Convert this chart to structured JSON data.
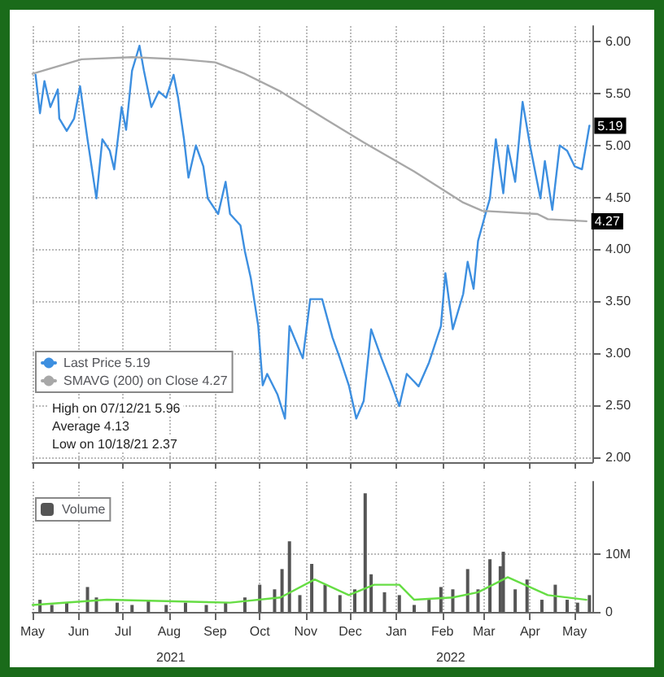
{
  "chart_data": [
    {
      "type": "line",
      "legend": "bottom left",
      "grid": true,
      "marker": "none",
      "line_style": "solid",
      "tick_labels": "y",
      "xlim": [
        "2021-05-01",
        "2022-05-13"
      ],
      "xticks": [
        {
          "value": "2021-05-01",
          "label": null
        },
        {
          "value": "2021-06-01",
          "label": null
        },
        {
          "value": "2021-07-01",
          "label": null
        },
        {
          "value": "2021-08-01",
          "label": null
        },
        {
          "value": "2021-09-01",
          "label": null
        },
        {
          "value": "2021-10-01",
          "label": null
        },
        {
          "value": "2021-11-01",
          "label": null
        },
        {
          "value": "2021-12-01",
          "label": null
        },
        {
          "value": "2022-01-01",
          "label": null
        },
        {
          "value": "2022-02-01",
          "label": null
        },
        {
          "value": "2022-03-01",
          "label": null
        },
        {
          "value": "2022-04-01",
          "label": null
        },
        {
          "value": "2022-05-01",
          "label": null
        }
      ],
      "ylim": [
        1.95,
        6.15
      ],
      "yticks": [
        {
          "value": 2,
          "label": "2.00"
        },
        {
          "value": 2.5,
          "label": "2.50"
        },
        {
          "value": 3,
          "label": "3.00"
        },
        {
          "value": 3.5,
          "label": "3.50"
        },
        {
          "value": 4,
          "label": "4.00"
        },
        {
          "value": 4.5,
          "label": "4.50"
        },
        {
          "value": 5,
          "label": "5.00"
        },
        {
          "value": 5.5,
          "label": "5.50"
        },
        {
          "value": 6,
          "label": "6.00"
        }
      ],
      "annotations": [
        "High on 07/12/21 5.96",
        "Average 4.13",
        "Low on 10/18/21 2.37"
      ],
      "series": [
        {
          "name": "Last Price 5.19",
          "color": "#3d8fe0",
          "x": [
            "2021-05-03",
            "2021-05-06",
            "2021-05-09",
            "2021-05-13",
            "2021-05-18",
            "2021-05-19",
            "2021-05-24",
            "2021-05-29",
            "2021-06-02",
            "2021-06-07",
            "2021-06-13",
            "2021-06-17",
            "2021-06-22",
            "2021-06-25",
            "2021-06-30",
            "2021-07-03",
            "2021-07-07",
            "2021-07-12",
            "2021-07-15",
            "2021-07-20",
            "2021-07-25",
            "2021-07-30",
            "2021-08-04",
            "2021-08-07",
            "2021-08-11",
            "2021-08-14",
            "2021-08-19",
            "2021-08-24",
            "2021-08-27",
            "2021-09-03",
            "2021-09-08",
            "2021-09-11",
            "2021-09-18",
            "2021-09-21",
            "2021-09-25",
            "2021-09-30",
            "2021-10-03",
            "2021-10-06",
            "2021-10-13",
            "2021-10-18",
            "2021-10-21",
            "2021-10-30",
            "2021-11-04",
            "2021-11-12",
            "2021-11-19",
            "2021-11-24",
            "2021-11-30",
            "2021-12-05",
            "2021-12-10",
            "2021-12-15",
            "2021-12-22",
            "2021-12-29",
            "2022-01-03",
            "2022-01-08",
            "2022-01-16",
            "2022-01-23",
            "2022-01-31",
            "2022-02-03",
            "2022-02-08",
            "2022-02-15",
            "2022-02-18",
            "2022-02-22",
            "2022-02-25",
            "2022-03-02",
            "2022-03-05",
            "2022-03-09",
            "2022-03-14",
            "2022-03-17",
            "2022-03-22",
            "2022-03-27",
            "2022-04-01",
            "2022-04-08",
            "2022-04-11",
            "2022-04-16",
            "2022-04-21",
            "2022-04-26",
            "2022-05-01",
            "2022-05-06",
            "2022-05-11"
          ],
          "values": [
            5.68,
            5.31,
            5.62,
            5.37,
            5.54,
            5.26,
            5.14,
            5.26,
            5.57,
            5.06,
            4.49,
            5.06,
            4.95,
            4.77,
            5.37,
            5.15,
            5.72,
            5.96,
            5.72,
            5.37,
            5.52,
            5.46,
            5.68,
            5.46,
            5.06,
            4.69,
            5.0,
            4.8,
            4.49,
            4.34,
            4.65,
            4.34,
            4.23,
            3.98,
            3.72,
            3.26,
            2.69,
            2.8,
            2.6,
            2.37,
            3.26,
            2.95,
            3.52,
            3.52,
            3.15,
            2.95,
            2.69,
            2.37,
            2.54,
            3.23,
            2.95,
            2.69,
            2.49,
            2.8,
            2.68,
            2.91,
            3.26,
            3.77,
            3.23,
            3.57,
            3.88,
            3.62,
            4.08,
            4.34,
            4.49,
            5.06,
            4.54,
            5.0,
            4.65,
            5.42,
            5.0,
            4.49,
            4.85,
            4.38,
            5.0,
            4.95,
            4.8,
            4.77,
            5.19
          ],
          "value_labels": [
            null,
            null,
            null,
            null,
            null,
            null,
            null,
            null,
            null,
            null,
            null,
            null,
            null,
            null,
            null,
            null,
            null,
            null,
            null,
            null,
            null,
            null,
            null,
            null,
            null,
            null,
            null,
            null,
            null,
            null,
            null,
            null,
            null,
            null,
            null,
            null,
            null,
            null,
            null,
            null,
            null,
            null,
            null,
            null,
            null,
            null,
            null,
            null,
            null,
            null,
            null,
            null,
            null,
            null,
            null,
            null,
            null,
            null,
            null,
            null,
            null,
            null,
            null,
            null,
            null,
            null,
            null,
            null,
            null,
            null,
            null,
            null,
            null,
            null,
            null,
            null,
            null,
            null,
            "5.19"
          ]
        },
        {
          "name": "SMAVG (200) on Close 4.27",
          "color": "#a8a8a8",
          "x": [
            "2021-05-01",
            "2021-06-03",
            "2021-07-07",
            "2021-08-09",
            "2021-09-01",
            "2021-09-21",
            "2021-10-15",
            "2021-11-17",
            "2021-12-10",
            "2022-01-13",
            "2022-02-15",
            "2022-02-28",
            "2022-04-06",
            "2022-04-13",
            "2022-05-09"
          ],
          "values": [
            5.69,
            5.83,
            5.85,
            5.83,
            5.8,
            5.69,
            5.52,
            5.23,
            5.03,
            4.75,
            4.45,
            4.37,
            4.34,
            4.29,
            4.27
          ],
          "value_labels": [
            null,
            null,
            null,
            null,
            null,
            null,
            null,
            null,
            null,
            null,
            null,
            null,
            null,
            null,
            "4.27"
          ]
        }
      ]
    },
    {
      "type": "bar",
      "legend": "top left",
      "grid": true,
      "marker": "none",
      "xlim": [
        "2021-05-01",
        "2022-05-13"
      ],
      "xticks": [
        {
          "value": "2021-05-01",
          "label": "May"
        },
        {
          "value": "2021-06-01",
          "label": "Jun"
        },
        {
          "value": "2021-07-01",
          "label": "Jul"
        },
        {
          "value": "2021-08-01",
          "label": "Aug"
        },
        {
          "value": "2021-09-01",
          "label": "Sep"
        },
        {
          "value": "2021-10-01",
          "label": "Oct"
        },
        {
          "value": "2021-11-01",
          "label": "Nov"
        },
        {
          "value": "2021-12-01",
          "label": "Dec"
        },
        {
          "value": "2022-01-01",
          "label": "Jan"
        },
        {
          "value": "2022-02-01",
          "label": "Feb"
        },
        {
          "value": "2022-03-01",
          "label": "Mar"
        },
        {
          "value": "2022-04-01",
          "label": "Apr"
        },
        {
          "value": "2022-05-01",
          "label": "May"
        }
      ],
      "ylim": [
        0,
        22.5
      ],
      "yticks": [
        {
          "value": 0,
          "label": "0"
        },
        {
          "value": 10,
          "label": "10M"
        }
      ],
      "annotations": [
        "2021",
        "2022"
      ],
      "series": [
        {
          "name": "Volume",
          "color": "#555555",
          "x": [
            "2021-05-06",
            "2021-05-14",
            "2021-05-24",
            "2021-06-07",
            "2021-06-13",
            "2021-06-27",
            "2021-07-07",
            "2021-07-18",
            "2021-07-30",
            "2021-08-12",
            "2021-08-26",
            "2021-09-08",
            "2021-09-21",
            "2021-10-01",
            "2021-10-11",
            "2021-10-16",
            "2021-10-21",
            "2021-10-28",
            "2021-11-05",
            "2021-11-14",
            "2021-11-24",
            "2021-12-04",
            "2021-12-11",
            "2021-12-15",
            "2021-12-24",
            "2022-01-03",
            "2022-01-13",
            "2022-01-23",
            "2022-01-31",
            "2022-02-08",
            "2022-02-18",
            "2022-02-25",
            "2022-03-05",
            "2022-03-12",
            "2022-03-14",
            "2022-03-22",
            "2022-03-30",
            "2022-04-09",
            "2022-04-18",
            "2022-04-26",
            "2022-05-03",
            "2022-05-11"
          ],
          "values": [
            2.1,
            1.2,
            1.6,
            4.3,
            2.5,
            1.6,
            1.2,
            2.1,
            1.2,
            1.6,
            1.2,
            1.6,
            2.5,
            4.7,
            3.9,
            7.4,
            12.2,
            2.9,
            8.3,
            4.7,
            2.9,
            3.9,
            20.5,
            6.5,
            3.4,
            2.9,
            1.2,
            2.1,
            4.3,
            3.9,
            7.4,
            3.9,
            9.1,
            7.9,
            10.4,
            3.9,
            5.6,
            2.1,
            4.7,
            2.1,
            1.6,
            2.9
          ]
        },
        {
          "type": "line",
          "color": "#66dd44",
          "x": [
            "2021-05-01",
            "2021-06-20",
            "2021-09-11",
            "2021-10-15",
            "2021-11-07",
            "2021-11-30",
            "2021-12-17",
            "2022-01-03",
            "2022-01-13",
            "2022-02-08",
            "2022-02-25",
            "2022-03-17",
            "2022-04-13",
            "2022-05-09"
          ],
          "values": [
            1.2,
            2.1,
            1.6,
            2.5,
            5.6,
            2.9,
            4.7,
            4.7,
            2.1,
            2.5,
            3.4,
            6.0,
            2.9,
            2.1
          ]
        }
      ]
    }
  ]
}
